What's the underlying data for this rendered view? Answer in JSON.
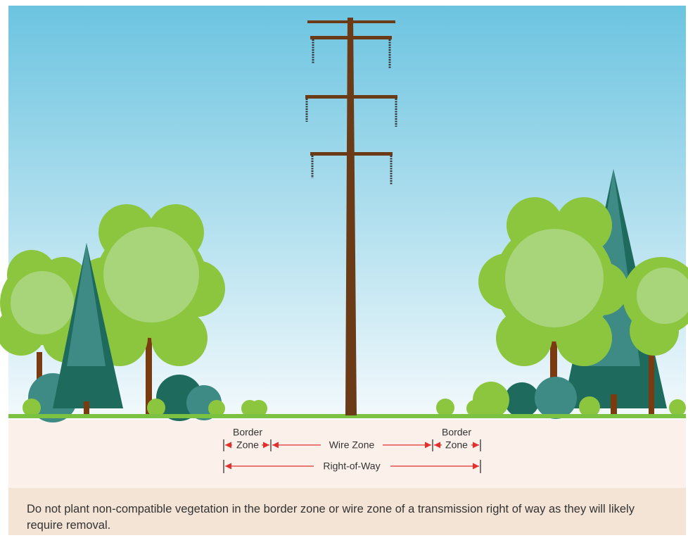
{
  "zones": {
    "border_left": [
      "Border",
      "Zone"
    ],
    "wire": "Wire Zone",
    "border_right": [
      "Border",
      "Zone"
    ],
    "right_of_way": "Right-of-Way"
  },
  "caption": "Do not plant non-compatible vegetation in the border zone or wire zone of a transmission right of way as they will likely require removal."
}
